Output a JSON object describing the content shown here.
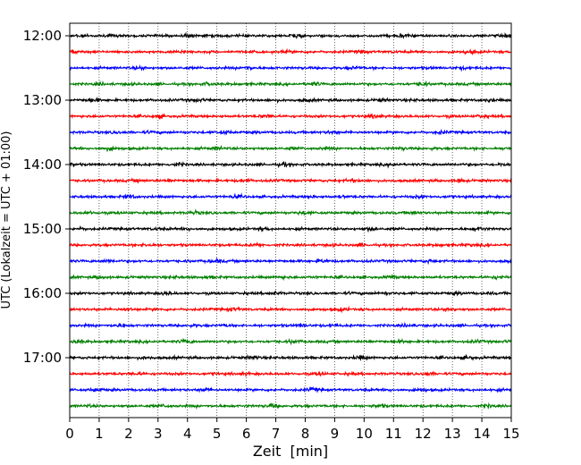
{
  "chart_data": {
    "type": "line",
    "title": "",
    "xlabel": "Zeit  [min]",
    "ylabel": "UTC (Lokalzeit = UTC + 01:00)",
    "xlim": [
      0,
      15
    ],
    "x_ticks": [
      "0",
      "1",
      "2",
      "3",
      "4",
      "5",
      "6",
      "7",
      "8",
      "9",
      "10",
      "11",
      "12",
      "13",
      "14",
      "15"
    ],
    "y_ticks": [
      "12:00",
      "13:00",
      "14:00",
      "15:00",
      "16:00",
      "17:00"
    ],
    "grid": "vertical-dotted",
    "trace_interval_min": 15,
    "start_time": "12:00",
    "trace_count": 24,
    "trace_colors": [
      "#000000",
      "#ff0000",
      "#0000ff",
      "#007f00"
    ]
  }
}
